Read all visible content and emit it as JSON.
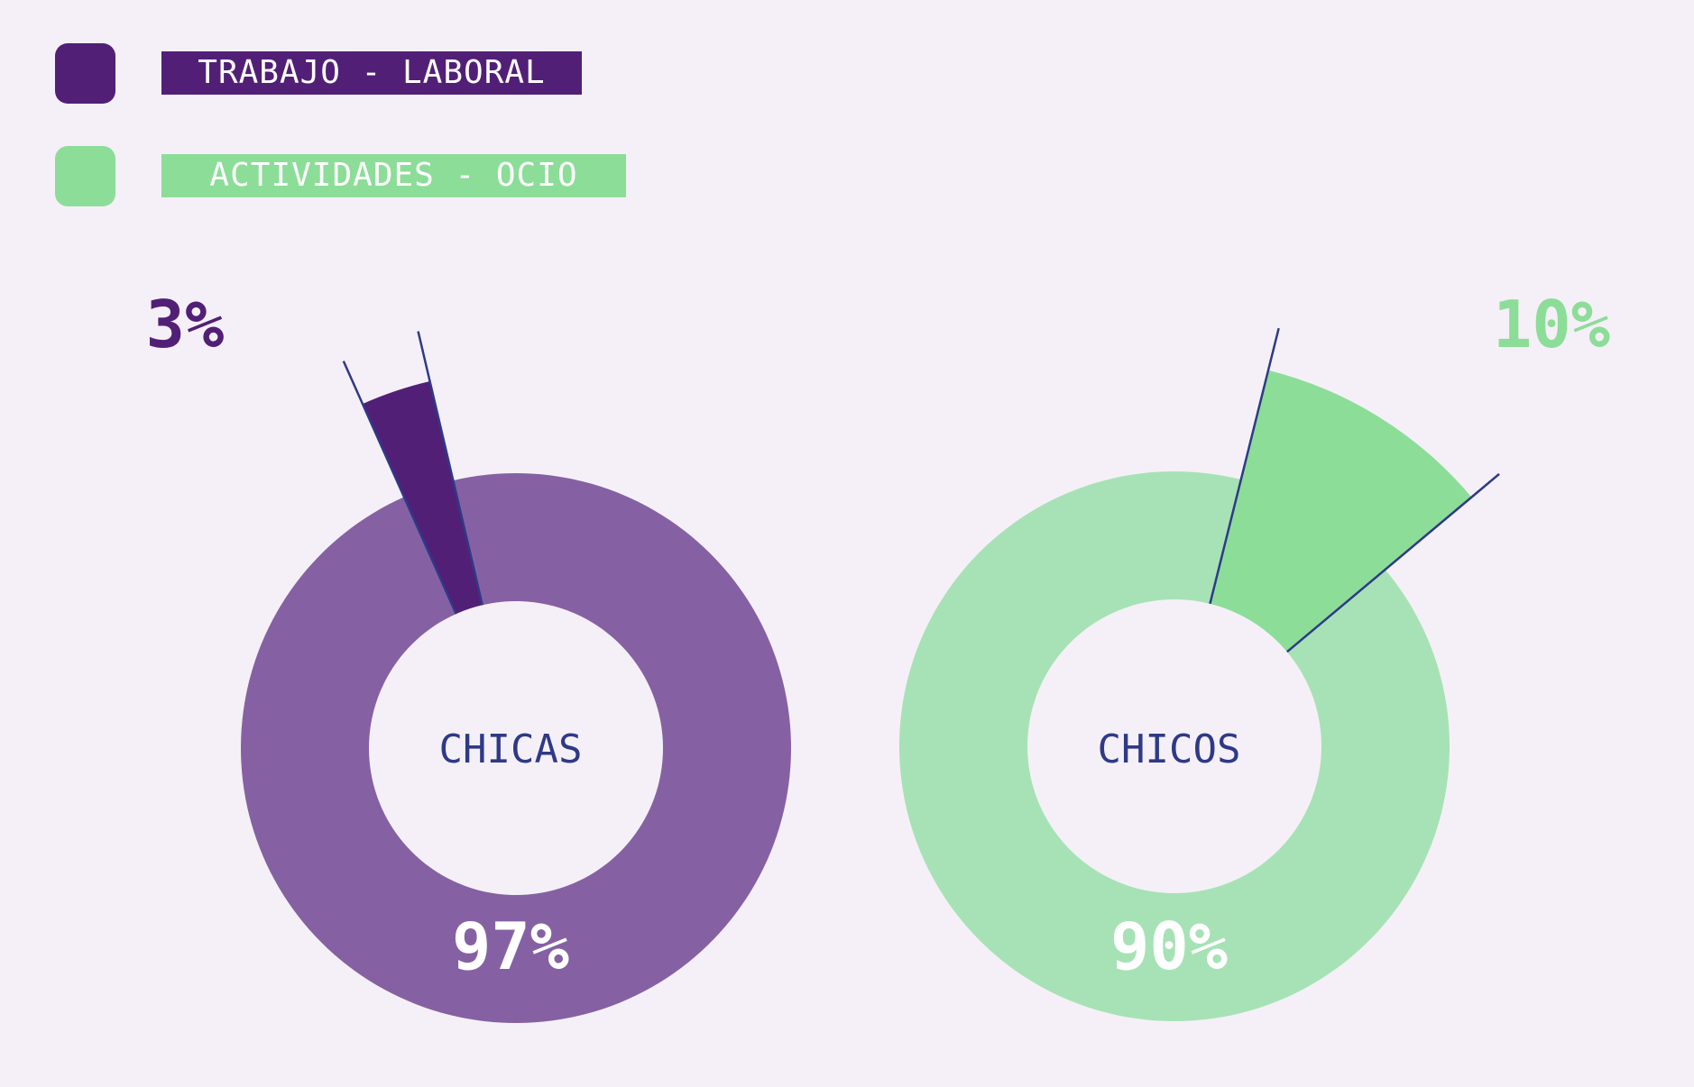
{
  "legend": [
    {
      "label": "TRABAJO - LABORAL",
      "color": "#521f77"
    },
    {
      "label": "ACTIVIDADES - OCIO",
      "color": "#8cdd98"
    }
  ],
  "colors": {
    "background": "#f5f0f7",
    "center_text": "#2e3a87",
    "guide_line": "#2e3a87",
    "chicas_main": "#8561a3",
    "chicos_main": "#a6e2b5"
  },
  "chart_data": [
    {
      "type": "pie",
      "center_label": "CHICAS",
      "slices": [
        {
          "category": "TRABAJO - LABORAL",
          "value": 3,
          "label": "3%",
          "color": "#521f77",
          "exploded": true
        },
        {
          "category": "ACTIVIDADES - OCIO",
          "value": 97,
          "label": "97%",
          "color": "#8561a3",
          "exploded": false
        }
      ]
    },
    {
      "type": "pie",
      "center_label": "CHICOS",
      "slices": [
        {
          "category": "ACTIVIDADES - OCIO",
          "value": 10,
          "label": "10%",
          "color": "#8cdd98",
          "exploded": true
        },
        {
          "category": "TRABAJO - LABORAL",
          "value": 90,
          "label": "90%",
          "color": "#a6e2b5",
          "exploded": false
        }
      ]
    }
  ]
}
